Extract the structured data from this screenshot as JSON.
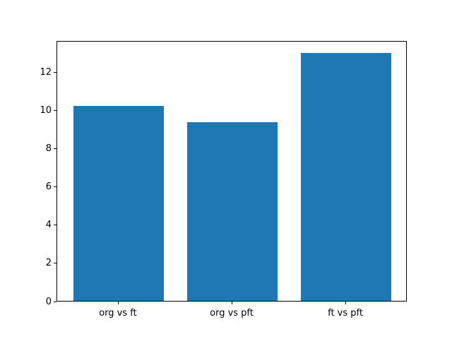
{
  "chart_data": {
    "type": "bar",
    "categories": [
      "org vs ft",
      "org vs pft",
      "ft vs pft"
    ],
    "values": [
      10.2,
      9.35,
      13.0
    ],
    "title": "",
    "xlabel": "",
    "ylabel": "",
    "ylim": [
      0,
      13.65
    ],
    "xlim": [
      -0.54,
      2.54
    ],
    "yticks": [
      0,
      2,
      4,
      6,
      8,
      10,
      12
    ],
    "bar_width_units": 0.8,
    "bar_color": "#1f77b4",
    "grid": false,
    "legend": null,
    "spine_color": "#000000",
    "background_color": "#ffffff"
  }
}
